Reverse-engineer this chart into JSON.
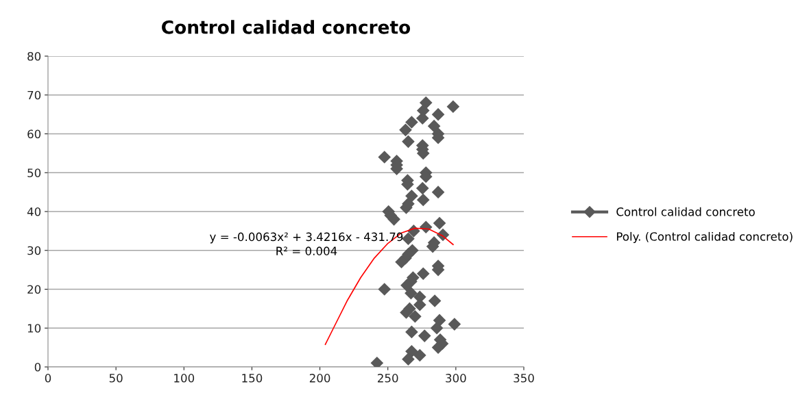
{
  "chart_data": {
    "type": "scatter",
    "title": "Control calidad concreto",
    "xlim": [
      0,
      350
    ],
    "xticks": [
      0,
      50,
      100,
      150,
      200,
      250,
      300,
      350
    ],
    "ylim": [
      0,
      80
    ],
    "yticks": [
      0,
      10,
      20,
      30,
      40,
      50,
      60,
      70,
      80
    ],
    "grid": "y",
    "legend": "right",
    "marker": "diamond",
    "annotations": [
      "y = -0.0063x² + 3.4216x - 431.79",
      "R² = 0.004"
    ],
    "series": [
      {
        "name": "Control calidad concreto",
        "color": "#595959",
        "x": [
          278,
          298,
          276,
          287,
          275.5,
          267.5,
          284,
          263,
          287,
          287,
          265,
          275.5,
          275.5,
          276,
          247.5,
          256.5,
          256.5,
          256.5,
          278,
          278,
          264.5,
          264.5,
          275.5,
          287,
          267.5,
          276,
          265,
          263.5,
          250.5,
          252,
          254.5,
          288,
          278,
          269,
          290.5,
          265,
          284,
          283,
          268,
          265,
          263,
          260,
          287,
          287,
          276,
          268.5,
          267,
          264,
          247.5,
          267,
          273.5,
          284.5,
          273.5,
          266,
          263.5,
          270,
          288,
          299,
          286,
          267.5,
          277,
          288.5,
          290,
          287,
          267.5,
          273.5,
          265,
          242
        ],
        "values": [
          68,
          67,
          66,
          65,
          64,
          63,
          62,
          61,
          60,
          59,
          58,
          57,
          56,
          55,
          54,
          53,
          52,
          51,
          50,
          49,
          48,
          47,
          46,
          45,
          44,
          43,
          42,
          41,
          40,
          39,
          38,
          37,
          36,
          35,
          34,
          33,
          32,
          31,
          30,
          29,
          28,
          27,
          26,
          25,
          24,
          23,
          22,
          21,
          20,
          19,
          18,
          17,
          16,
          15,
          14,
          13,
          12,
          11,
          10,
          9,
          8,
          7,
          6,
          5,
          4,
          3,
          2,
          1
        ]
      },
      {
        "name": "Poly. (Control calidad concreto)",
        "color": "#ff0000",
        "type": "line",
        "marker": "none",
        "line_style": "solid",
        "x": [
          204,
          210,
          220,
          230,
          240,
          250,
          260,
          270,
          280,
          290,
          298
        ],
        "values": [
          5.8,
          10,
          17,
          23,
          28,
          31.8,
          34.5,
          35.7,
          35.5,
          33.8,
          31.5
        ]
      }
    ]
  }
}
